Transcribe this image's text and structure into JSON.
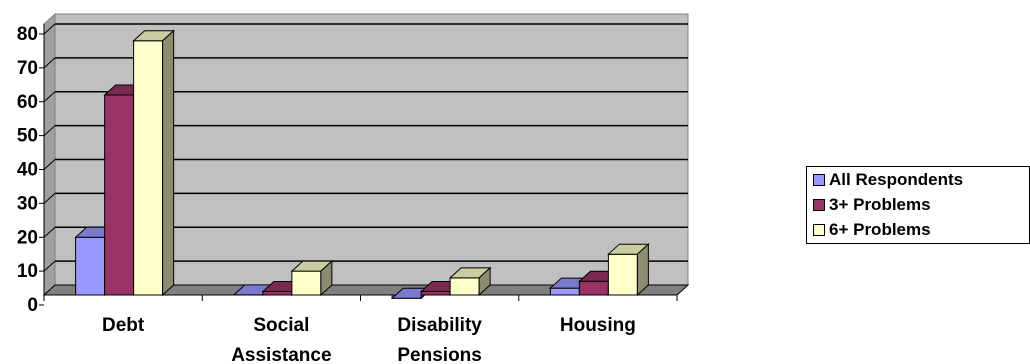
{
  "chart_data": {
    "type": "bar",
    "categories": [
      [
        "Debt"
      ],
      [
        "Social",
        "Assistance"
      ],
      [
        "Disability",
        "Pensions"
      ],
      [
        "Housing"
      ]
    ],
    "series": [
      {
        "name": "All Respondents",
        "values": [
          20,
          3,
          2,
          5
        ],
        "color": "#9999FF"
      },
      {
        "name": "3+ Problems",
        "values": [
          62,
          4,
          4,
          7
        ],
        "color": "#993366"
      },
      {
        "name": "6+ Problems",
        "values": [
          78,
          10,
          8,
          15
        ],
        "color": "#FFFFCC"
      }
    ],
    "ylim": [
      0,
      80
    ],
    "yticks": [
      0,
      10,
      20,
      30,
      40,
      50,
      60,
      70,
      80
    ],
    "grid": true,
    "legend_position": "right",
    "wall_color": "#C0C0C0",
    "floor_color": "#808080"
  }
}
